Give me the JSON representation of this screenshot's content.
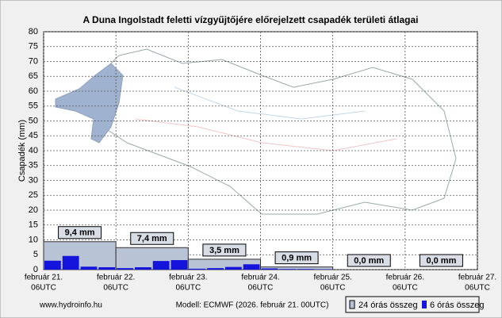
{
  "chart_data": {
    "type": "bar",
    "title": "A Duna Ingolstadt feletti vízgyűjtőjére előrejelzett csapadék területi átlagai",
    "y_label": "Csapadék (mm)",
    "x_tick_labels": [
      {
        "date": "február 21.",
        "time": "06UTC"
      },
      {
        "date": "február 22.",
        "time": "06UTC"
      },
      {
        "date": "február 23.",
        "time": "06UTC"
      },
      {
        "date": "február 24.",
        "time": "06UTC"
      },
      {
        "date": "február 25.",
        "time": "06UTC"
      },
      {
        "date": "február 26.",
        "time": "06UTC"
      },
      {
        "date": "február 27.",
        "time": "06UTC"
      }
    ],
    "series": [
      {
        "name": "24 órás összeg",
        "color": "#b9c3d6",
        "values": [
          9.4,
          7.4,
          3.5,
          0.9,
          0.0,
          0.0
        ],
        "value_labels": [
          "9,4 mm",
          "7,4 mm",
          "3,5 mm",
          "0,9 mm",
          "0,0 mm",
          "0,0 mm"
        ]
      },
      {
        "name": "6 órás összeg",
        "color": "#1414dc",
        "values": [
          3.0,
          4.6,
          1.0,
          0.8,
          0.5,
          0.8,
          2.9,
          3.2,
          0.3,
          0.5,
          0.9,
          1.8,
          0.4,
          0.2,
          0.2,
          0.1,
          0,
          0,
          0,
          0,
          0,
          0,
          0,
          0
        ]
      }
    ],
    "ylim": [
      0,
      80
    ],
    "yticks": [
      0,
      5,
      10,
      15,
      20,
      25,
      30,
      35,
      40,
      45,
      50,
      55,
      60,
      65,
      70,
      75,
      80
    ],
    "grid": true,
    "source": "www.hydroinfo.hu",
    "model": "Modell: ECMWF (2026. február 21. 00UTC)"
  }
}
